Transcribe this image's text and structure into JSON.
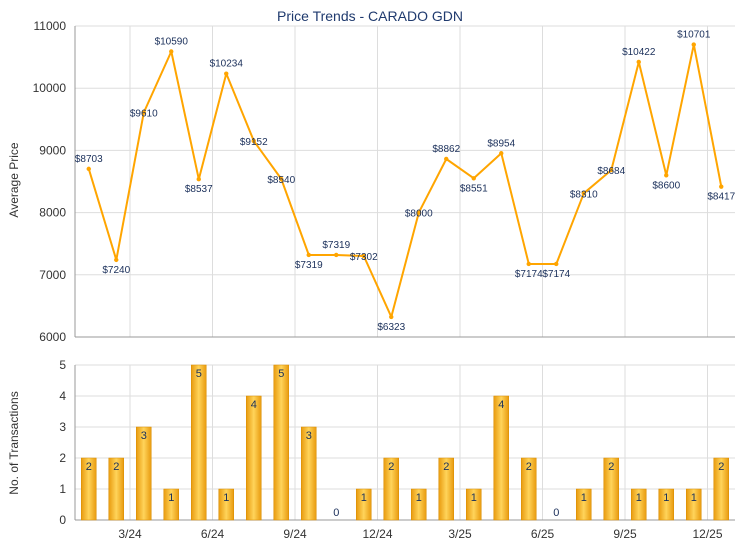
{
  "title": "Price Trends - CARADO GDN",
  "chart_data": [
    {
      "type": "line",
      "title": "Price Trends - CARADO GDN",
      "ylabel": "Average Price",
      "ylim": [
        6000,
        11000
      ],
      "yticks": [
        6000,
        7000,
        8000,
        9000,
        10000,
        11000
      ],
      "grid": true,
      "color": "#FFA500",
      "values": [
        8703,
        7240,
        9610,
        10590,
        8537,
        10234,
        9152,
        8540,
        7319,
        7319,
        7302,
        6323,
        8000,
        8862,
        8551,
        8954,
        7174,
        7174,
        8310,
        8684,
        10422,
        8600,
        10701,
        8417
      ],
      "labels": [
        "$8703",
        "$7240",
        "$9610",
        "$10590",
        "$8537",
        "$10234",
        "$9152",
        "$8540",
        "$7319",
        "$7319",
        "$7302",
        "$6323",
        "$8000",
        "$8862",
        "$8551",
        "$8954",
        "$7174",
        "$7174",
        "$8310",
        "$8684",
        "$10422",
        "$8600",
        "$10701",
        "$8417"
      ]
    },
    {
      "type": "bar",
      "ylabel": "No. of Transactions",
      "ylim": [
        0,
        5
      ],
      "yticks": [
        0,
        1,
        2,
        3,
        4,
        5
      ],
      "grid": true,
      "color": "#F0A91E",
      "values": [
        2,
        2,
        3,
        1,
        5,
        1,
        4,
        5,
        3,
        0,
        1,
        2,
        1,
        2,
        1,
        4,
        2,
        0,
        1,
        2,
        1,
        1,
        1,
        2
      ],
      "xtick_positions": [
        2,
        5,
        8,
        11,
        14,
        17,
        20,
        23
      ],
      "xtick_labels": [
        "3/24",
        "6/24",
        "9/24",
        "12/24",
        "3/25",
        "6/25",
        "9/25",
        "12/25"
      ]
    }
  ]
}
